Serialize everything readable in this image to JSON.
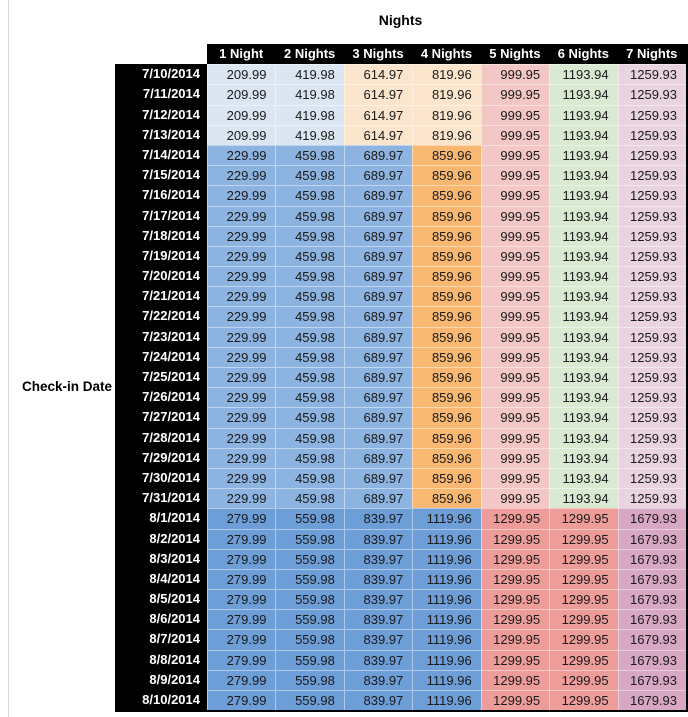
{
  "chart_data": {
    "type": "table",
    "title": "Nights",
    "row_axis_label": "Check-in Date",
    "columns": [
      "1 Night",
      "2 Nights",
      "3 Nights",
      "4 Nights",
      "5 Nights",
      "6 Nights",
      "7 Nights"
    ],
    "header_bg": "#000000",
    "header_text_color": "#ffffff",
    "palette": {
      "blue_light": "#dbe6f2",
      "blue_mid": "#8db3e0",
      "blue_dark": "#6d9ed8",
      "tan_light": "#fbe5cd",
      "orange_mid": "#f8b871",
      "red_light": "#f2c7c5",
      "red_salmon": "#ee9c99",
      "green_light": "#d9e9d2",
      "mauve_light": "#ead3e0",
      "mauve_dark": "#d7a7c4"
    },
    "rows": [
      {
        "date": "7/10/2014",
        "values": [
          209.99,
          419.98,
          614.97,
          819.96,
          999.95,
          1193.94,
          1259.93
        ],
        "colors": [
          "blue_light",
          "blue_light",
          "tan_light",
          "tan_light",
          "red_light",
          "green_light",
          "mauve_light"
        ]
      },
      {
        "date": "7/11/2014",
        "values": [
          209.99,
          419.98,
          614.97,
          819.96,
          999.95,
          1193.94,
          1259.93
        ],
        "colors": [
          "blue_light",
          "blue_light",
          "tan_light",
          "tan_light",
          "red_light",
          "green_light",
          "mauve_light"
        ]
      },
      {
        "date": "7/12/2014",
        "values": [
          209.99,
          419.98,
          614.97,
          819.96,
          999.95,
          1193.94,
          1259.93
        ],
        "colors": [
          "blue_light",
          "blue_light",
          "tan_light",
          "tan_light",
          "red_light",
          "green_light",
          "mauve_light"
        ]
      },
      {
        "date": "7/13/2014",
        "values": [
          209.99,
          419.98,
          614.97,
          819.96,
          999.95,
          1193.94,
          1259.93
        ],
        "colors": [
          "blue_light",
          "blue_light",
          "tan_light",
          "tan_light",
          "red_light",
          "green_light",
          "mauve_light"
        ]
      },
      {
        "date": "7/14/2014",
        "values": [
          229.99,
          459.98,
          689.97,
          859.96,
          999.95,
          1193.94,
          1259.93
        ],
        "colors": [
          "blue_mid",
          "blue_mid",
          "blue_mid",
          "orange_mid",
          "red_light",
          "green_light",
          "mauve_light"
        ]
      },
      {
        "date": "7/15/2014",
        "values": [
          229.99,
          459.98,
          689.97,
          859.96,
          999.95,
          1193.94,
          1259.93
        ],
        "colors": [
          "blue_mid",
          "blue_mid",
          "blue_mid",
          "orange_mid",
          "red_light",
          "green_light",
          "mauve_light"
        ]
      },
      {
        "date": "7/16/2014",
        "values": [
          229.99,
          459.98,
          689.97,
          859.96,
          999.95,
          1193.94,
          1259.93
        ],
        "colors": [
          "blue_mid",
          "blue_mid",
          "blue_mid",
          "orange_mid",
          "red_light",
          "green_light",
          "mauve_light"
        ]
      },
      {
        "date": "7/17/2014",
        "values": [
          229.99,
          459.98,
          689.97,
          859.96,
          999.95,
          1193.94,
          1259.93
        ],
        "colors": [
          "blue_mid",
          "blue_mid",
          "blue_mid",
          "orange_mid",
          "red_light",
          "green_light",
          "mauve_light"
        ]
      },
      {
        "date": "7/18/2014",
        "values": [
          229.99,
          459.98,
          689.97,
          859.96,
          999.95,
          1193.94,
          1259.93
        ],
        "colors": [
          "blue_mid",
          "blue_mid",
          "blue_mid",
          "orange_mid",
          "red_light",
          "green_light",
          "mauve_light"
        ]
      },
      {
        "date": "7/19/2014",
        "values": [
          229.99,
          459.98,
          689.97,
          859.96,
          999.95,
          1193.94,
          1259.93
        ],
        "colors": [
          "blue_mid",
          "blue_mid",
          "blue_mid",
          "orange_mid",
          "red_light",
          "green_light",
          "mauve_light"
        ]
      },
      {
        "date": "7/20/2014",
        "values": [
          229.99,
          459.98,
          689.97,
          859.96,
          999.95,
          1193.94,
          1259.93
        ],
        "colors": [
          "blue_mid",
          "blue_mid",
          "blue_mid",
          "orange_mid",
          "red_light",
          "green_light",
          "mauve_light"
        ]
      },
      {
        "date": "7/21/2014",
        "values": [
          229.99,
          459.98,
          689.97,
          859.96,
          999.95,
          1193.94,
          1259.93
        ],
        "colors": [
          "blue_mid",
          "blue_mid",
          "blue_mid",
          "orange_mid",
          "red_light",
          "green_light",
          "mauve_light"
        ]
      },
      {
        "date": "7/22/2014",
        "values": [
          229.99,
          459.98,
          689.97,
          859.96,
          999.95,
          1193.94,
          1259.93
        ],
        "colors": [
          "blue_mid",
          "blue_mid",
          "blue_mid",
          "orange_mid",
          "red_light",
          "green_light",
          "mauve_light"
        ]
      },
      {
        "date": "7/23/2014",
        "values": [
          229.99,
          459.98,
          689.97,
          859.96,
          999.95,
          1193.94,
          1259.93
        ],
        "colors": [
          "blue_mid",
          "blue_mid",
          "blue_mid",
          "orange_mid",
          "red_light",
          "green_light",
          "mauve_light"
        ]
      },
      {
        "date": "7/24/2014",
        "values": [
          229.99,
          459.98,
          689.97,
          859.96,
          999.95,
          1193.94,
          1259.93
        ],
        "colors": [
          "blue_mid",
          "blue_mid",
          "blue_mid",
          "orange_mid",
          "red_light",
          "green_light",
          "mauve_light"
        ]
      },
      {
        "date": "7/25/2014",
        "values": [
          229.99,
          459.98,
          689.97,
          859.96,
          999.95,
          1193.94,
          1259.93
        ],
        "colors": [
          "blue_mid",
          "blue_mid",
          "blue_mid",
          "orange_mid",
          "red_light",
          "green_light",
          "mauve_light"
        ]
      },
      {
        "date": "7/26/2014",
        "values": [
          229.99,
          459.98,
          689.97,
          859.96,
          999.95,
          1193.94,
          1259.93
        ],
        "colors": [
          "blue_mid",
          "blue_mid",
          "blue_mid",
          "orange_mid",
          "red_light",
          "green_light",
          "mauve_light"
        ]
      },
      {
        "date": "7/27/2014",
        "values": [
          229.99,
          459.98,
          689.97,
          859.96,
          999.95,
          1193.94,
          1259.93
        ],
        "colors": [
          "blue_mid",
          "blue_mid",
          "blue_mid",
          "orange_mid",
          "red_light",
          "green_light",
          "mauve_light"
        ]
      },
      {
        "date": "7/28/2014",
        "values": [
          229.99,
          459.98,
          689.97,
          859.96,
          999.95,
          1193.94,
          1259.93
        ],
        "colors": [
          "blue_mid",
          "blue_mid",
          "blue_mid",
          "orange_mid",
          "red_light",
          "green_light",
          "mauve_light"
        ]
      },
      {
        "date": "7/29/2014",
        "values": [
          229.99,
          459.98,
          689.97,
          859.96,
          999.95,
          1193.94,
          1259.93
        ],
        "colors": [
          "blue_mid",
          "blue_mid",
          "blue_mid",
          "orange_mid",
          "red_light",
          "green_light",
          "mauve_light"
        ]
      },
      {
        "date": "7/30/2014",
        "values": [
          229.99,
          459.98,
          689.97,
          859.96,
          999.95,
          1193.94,
          1259.93
        ],
        "colors": [
          "blue_mid",
          "blue_mid",
          "blue_mid",
          "orange_mid",
          "red_light",
          "green_light",
          "mauve_light"
        ]
      },
      {
        "date": "7/31/2014",
        "values": [
          229.99,
          459.98,
          689.97,
          859.96,
          999.95,
          1193.94,
          1259.93
        ],
        "colors": [
          "blue_mid",
          "blue_mid",
          "blue_mid",
          "orange_mid",
          "red_light",
          "green_light",
          "mauve_light"
        ]
      },
      {
        "date": "8/1/2014",
        "values": [
          279.99,
          559.98,
          839.97,
          1119.96,
          1299.95,
          1299.95,
          1679.93
        ],
        "colors": [
          "blue_dark",
          "blue_dark",
          "blue_dark",
          "blue_dark",
          "red_salmon",
          "red_salmon",
          "mauve_dark"
        ]
      },
      {
        "date": "8/2/2014",
        "values": [
          279.99,
          559.98,
          839.97,
          1119.96,
          1299.95,
          1299.95,
          1679.93
        ],
        "colors": [
          "blue_dark",
          "blue_dark",
          "blue_dark",
          "blue_dark",
          "red_salmon",
          "red_salmon",
          "mauve_dark"
        ]
      },
      {
        "date": "8/3/2014",
        "values": [
          279.99,
          559.98,
          839.97,
          1119.96,
          1299.95,
          1299.95,
          1679.93
        ],
        "colors": [
          "blue_dark",
          "blue_dark",
          "blue_dark",
          "blue_dark",
          "red_salmon",
          "red_salmon",
          "mauve_dark"
        ]
      },
      {
        "date": "8/4/2014",
        "values": [
          279.99,
          559.98,
          839.97,
          1119.96,
          1299.95,
          1299.95,
          1679.93
        ],
        "colors": [
          "blue_dark",
          "blue_dark",
          "blue_dark",
          "blue_dark",
          "red_salmon",
          "red_salmon",
          "mauve_dark"
        ]
      },
      {
        "date": "8/5/2014",
        "values": [
          279.99,
          559.98,
          839.97,
          1119.96,
          1299.95,
          1299.95,
          1679.93
        ],
        "colors": [
          "blue_dark",
          "blue_dark",
          "blue_dark",
          "blue_dark",
          "red_salmon",
          "red_salmon",
          "mauve_dark"
        ]
      },
      {
        "date": "8/6/2014",
        "values": [
          279.99,
          559.98,
          839.97,
          1119.96,
          1299.95,
          1299.95,
          1679.93
        ],
        "colors": [
          "blue_dark",
          "blue_dark",
          "blue_dark",
          "blue_dark",
          "red_salmon",
          "red_salmon",
          "mauve_dark"
        ]
      },
      {
        "date": "8/7/2014",
        "values": [
          279.99,
          559.98,
          839.97,
          1119.96,
          1299.95,
          1299.95,
          1679.93
        ],
        "colors": [
          "blue_dark",
          "blue_dark",
          "blue_dark",
          "blue_dark",
          "red_salmon",
          "red_salmon",
          "mauve_dark"
        ]
      },
      {
        "date": "8/8/2014",
        "values": [
          279.99,
          559.98,
          839.97,
          1119.96,
          1299.95,
          1299.95,
          1679.93
        ],
        "colors": [
          "blue_dark",
          "blue_dark",
          "blue_dark",
          "blue_dark",
          "red_salmon",
          "red_salmon",
          "mauve_dark"
        ]
      },
      {
        "date": "8/9/2014",
        "values": [
          279.99,
          559.98,
          839.97,
          1119.96,
          1299.95,
          1299.95,
          1679.93
        ],
        "colors": [
          "blue_dark",
          "blue_dark",
          "blue_dark",
          "blue_dark",
          "red_salmon",
          "red_salmon",
          "mauve_dark"
        ]
      },
      {
        "date": "8/10/2014",
        "values": [
          279.99,
          559.98,
          839.97,
          1119.96,
          1299.95,
          1299.95,
          1679.93
        ],
        "colors": [
          "blue_dark",
          "blue_dark",
          "blue_dark",
          "blue_dark",
          "red_salmon",
          "red_salmon",
          "mauve_dark"
        ]
      }
    ]
  }
}
